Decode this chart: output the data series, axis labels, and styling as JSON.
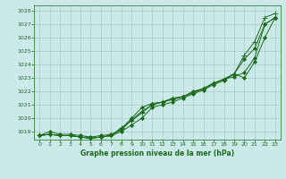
{
  "title": "Graphe pression niveau de la mer (hPa)",
  "bg_color": "#cce9e9",
  "grid_color": "#aacccc",
  "line_color": "#1a6b1a",
  "xlim": [
    -0.5,
    23.5
  ],
  "ylim": [
    1018.4,
    1028.4
  ],
  "yticks": [
    1019,
    1020,
    1021,
    1022,
    1023,
    1024,
    1025,
    1026,
    1027,
    1028
  ],
  "xticks": [
    0,
    1,
    2,
    3,
    4,
    5,
    6,
    7,
    8,
    9,
    10,
    11,
    12,
    13,
    14,
    15,
    16,
    17,
    18,
    19,
    20,
    21,
    22,
    23
  ],
  "series": [
    [
      1018.7,
      1019.0,
      1018.8,
      1018.8,
      1018.7,
      1018.6,
      1018.7,
      1018.8,
      1019.1,
      1019.9,
      1020.5,
      1021.0,
      1021.2,
      1021.4,
      1021.6,
      1021.9,
      1022.2,
      1022.6,
      1022.9,
      1023.1,
      1023.4,
      1024.5,
      1027.0,
      1027.5
    ],
    [
      1018.7,
      1018.8,
      1018.7,
      1018.7,
      1018.6,
      1018.5,
      1018.6,
      1018.7,
      1019.0,
      1019.5,
      1020.0,
      1020.8,
      1021.0,
      1021.2,
      1021.5,
      1021.8,
      1022.1,
      1022.5,
      1022.8,
      1023.3,
      1023.0,
      1024.2,
      1026.0,
      1027.5
    ],
    [
      1018.7,
      1018.8,
      1018.7,
      1018.7,
      1018.6,
      1018.5,
      1018.6,
      1018.7,
      1019.3,
      1019.8,
      1020.4,
      1021.0,
      1021.2,
      1021.4,
      1021.6,
      1021.9,
      1022.2,
      1022.6,
      1022.9,
      1023.3,
      1024.7,
      1025.7,
      1027.5,
      1027.8
    ],
    [
      1018.7,
      1018.8,
      1018.7,
      1018.7,
      1018.6,
      1018.5,
      1018.6,
      1018.7,
      1019.2,
      1020.0,
      1020.8,
      1021.1,
      1021.2,
      1021.5,
      1021.6,
      1022.0,
      1022.2,
      1022.6,
      1022.9,
      1023.3,
      1024.4,
      1025.2,
      1027.0,
      1027.5
    ]
  ]
}
